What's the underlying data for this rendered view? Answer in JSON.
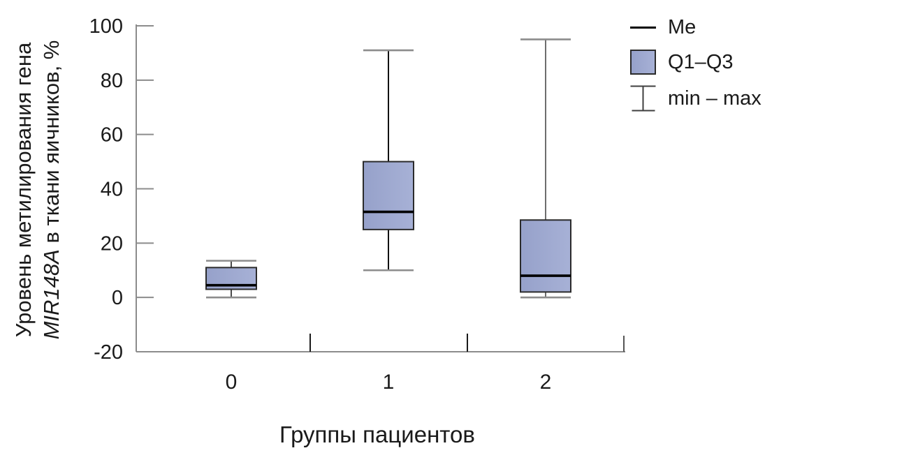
{
  "chart_data": {
    "type": "box",
    "title": "",
    "xlabel": "Группы пациентов",
    "ylabel_line1": "Уровень метилирования гена",
    "ylabel_line2_italic": "MIR148A",
    "ylabel_line2_rest": " в ткани яичников, %",
    "categories": [
      "0",
      "1",
      "2"
    ],
    "yticks": [
      -20,
      0,
      20,
      40,
      60,
      80,
      100
    ],
    "ylim": [
      -20,
      100
    ],
    "grid": false,
    "legend_position": "top-right",
    "series": [
      {
        "group": "0",
        "min": 0,
        "q1": 3,
        "median": 4.5,
        "q3": 11,
        "max": 13.5
      },
      {
        "group": "1",
        "min": 10,
        "q1": 25,
        "median": 31.5,
        "q3": 50,
        "max": 91
      },
      {
        "group": "2",
        "min": 0,
        "q1": 2,
        "median": 8,
        "q3": 28.5,
        "max": 95
      }
    ],
    "legend": [
      {
        "symbol": "median-line",
        "label": "Me"
      },
      {
        "symbol": "box",
        "label": "Q1–Q3"
      },
      {
        "symbol": "whisker",
        "label": "min – max"
      }
    ]
  },
  "colors": {
    "box_fill_left": "#96a1ca",
    "box_fill_right": "#a7b1d6",
    "box_border": "#2b2b2b",
    "median": "#000000",
    "whisker_cap": "#8c8c8c",
    "stem_colors": [
      "#4a4a4a",
      "#111111",
      "#6e6e6e"
    ],
    "axis": "#8c8c8c",
    "divider": "#1a1a1a",
    "end_tick": "#555555",
    "text": "#1a1a1a"
  }
}
